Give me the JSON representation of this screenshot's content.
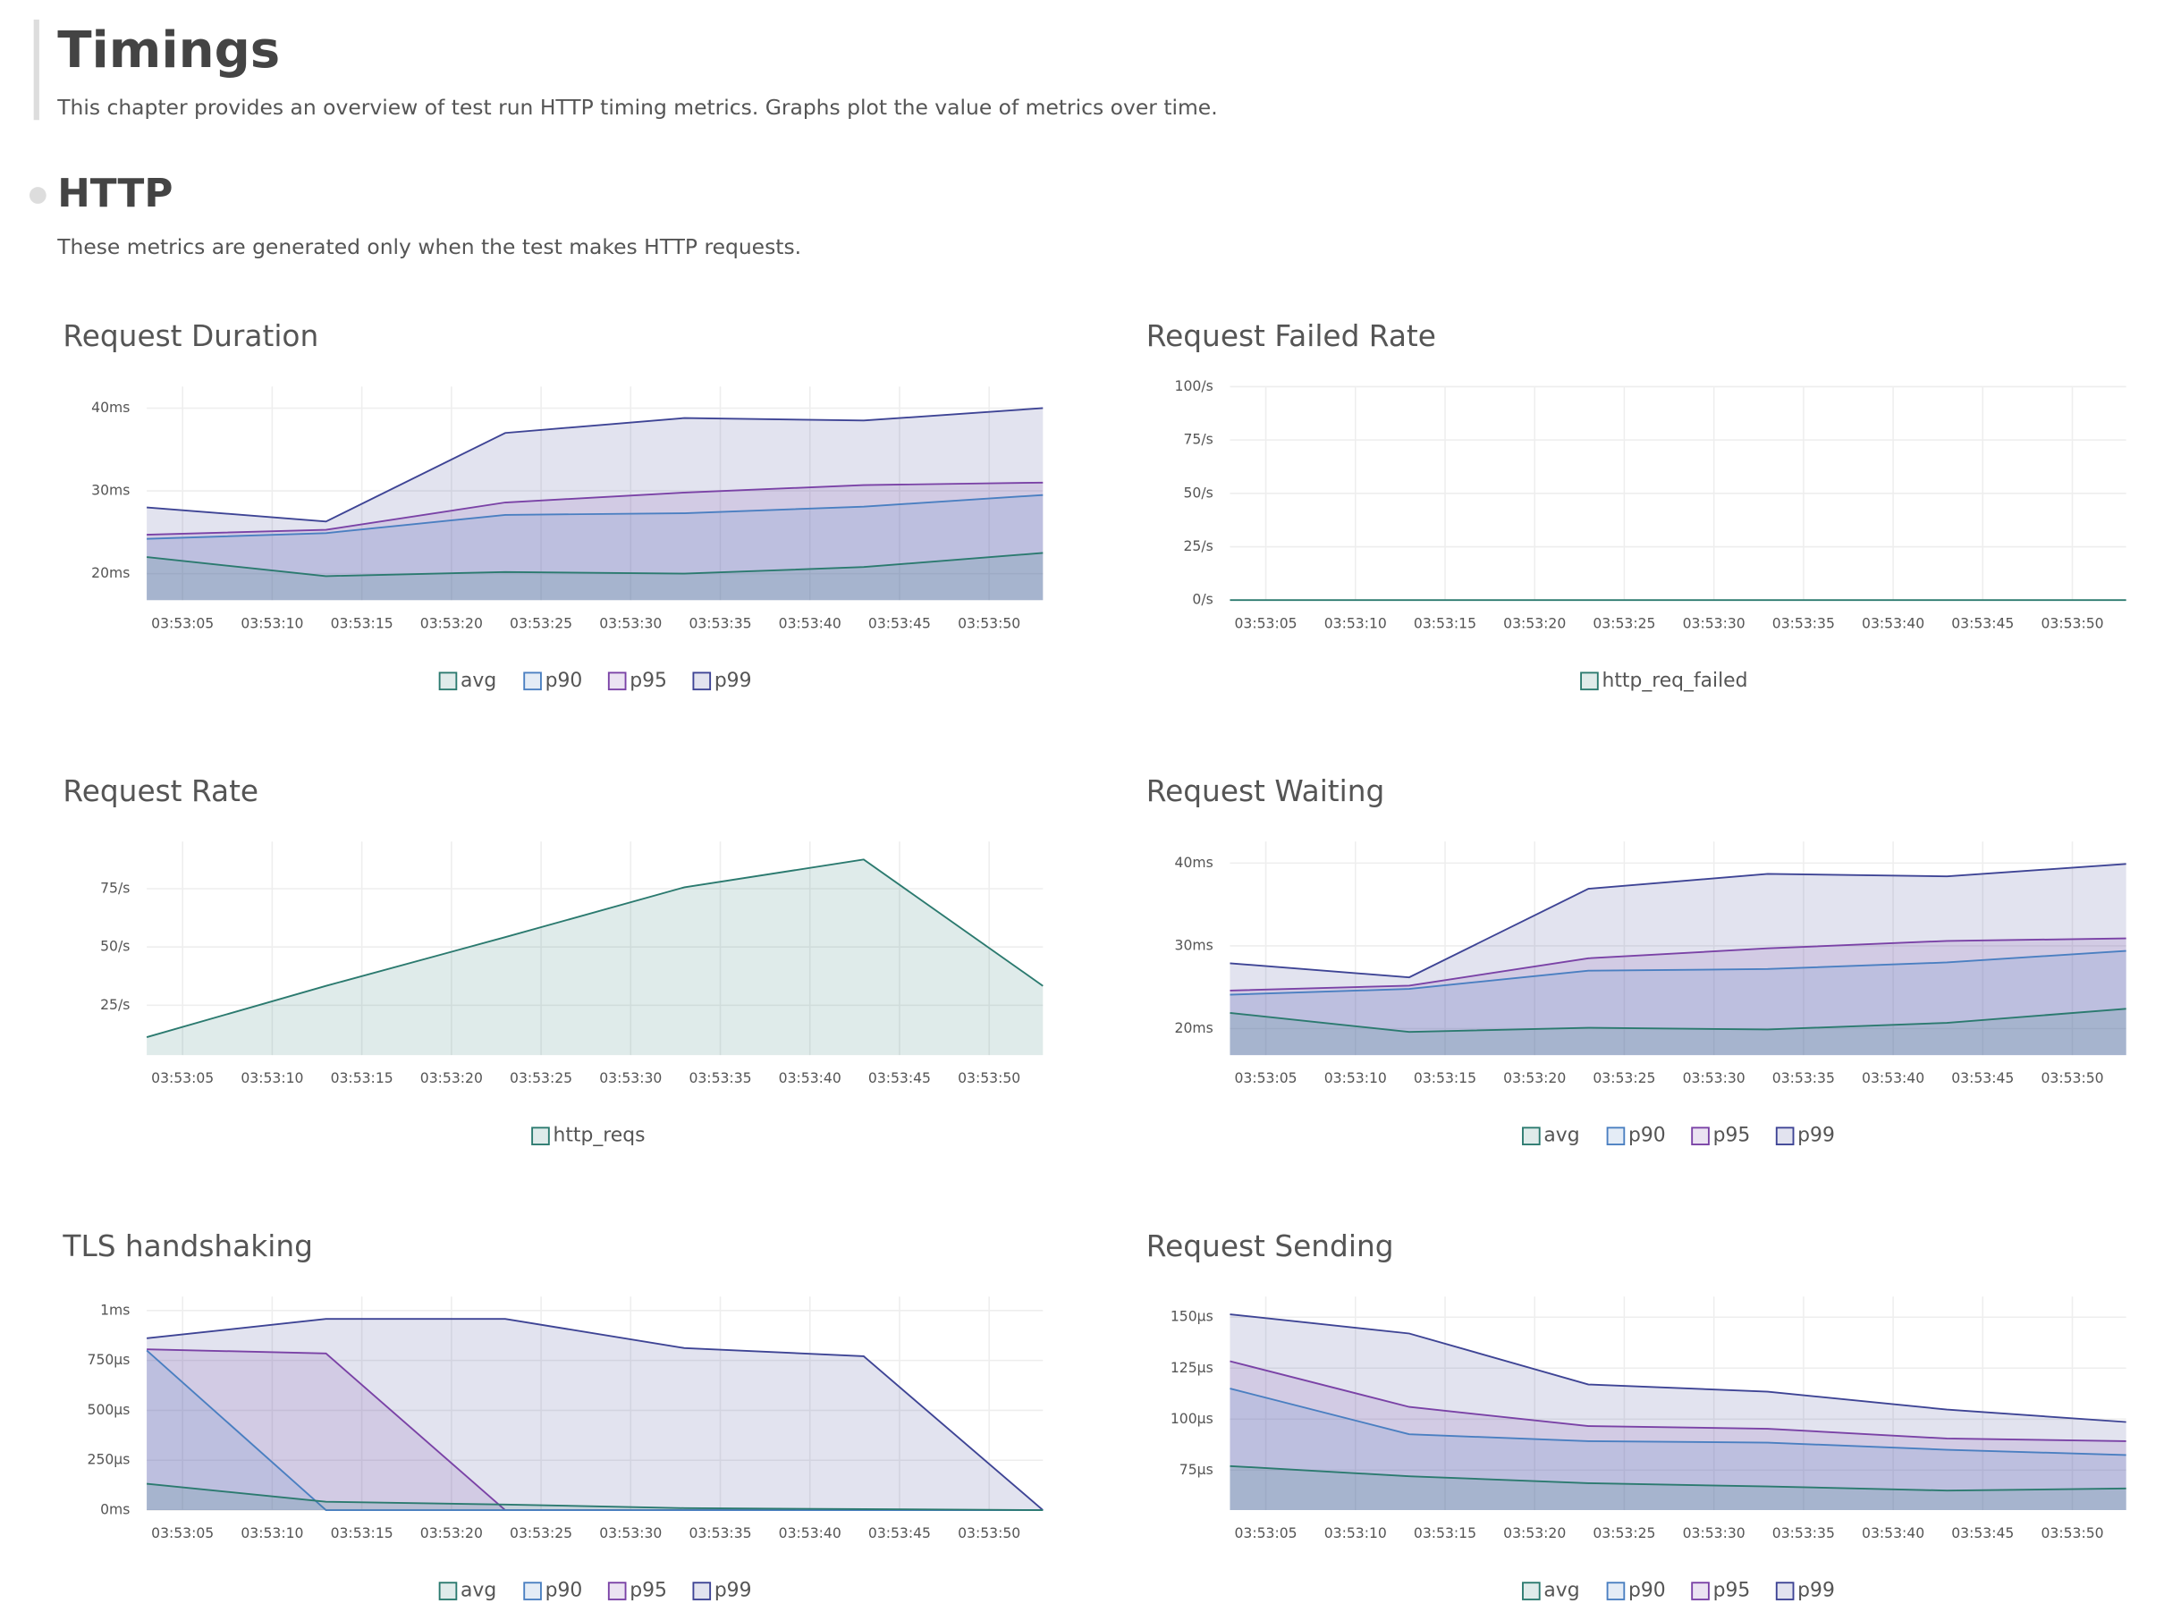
{
  "header": {
    "title": "Timings",
    "description": "This chapter provides an overview of test run HTTP timing metrics. Graphs plot the value of metrics over time."
  },
  "section": {
    "title": "HTTP",
    "description": "These metrics are generated only when the test makes HTTP requests."
  },
  "chart_data": [
    {
      "type": "area",
      "title": "Request Duration",
      "x": [
        "03:53:03",
        "03:53:13",
        "03:53:23",
        "03:53:33",
        "03:53:43",
        "03:53:53"
      ],
      "xlim": [
        "03:53:03",
        "03:53:53"
      ],
      "xticks": [
        "03:53:05",
        "03:53:10",
        "03:53:15",
        "03:53:20",
        "03:53:25",
        "03:53:30",
        "03:53:35",
        "03:53:40",
        "03:53:45",
        "03:53:50"
      ],
      "ylim": [
        16.8,
        42.6
      ],
      "yticks": [
        {
          "value": 20,
          "label": "20ms"
        },
        {
          "value": 30,
          "label": "30ms"
        },
        {
          "value": 40,
          "label": "40ms"
        }
      ],
      "grid": true,
      "series": [
        {
          "name": "avg",
          "color": "#2b7a6f",
          "values": [
            22.0,
            19.7,
            20.2,
            20.0,
            20.8,
            22.5
          ]
        },
        {
          "name": "p90",
          "color": "#4a7fc1",
          "values": [
            24.2,
            24.9,
            27.1,
            27.3,
            28.1,
            29.5
          ]
        },
        {
          "name": "p95",
          "color": "#7a42a6",
          "values": [
            24.7,
            25.3,
            28.6,
            29.8,
            30.7,
            31.0
          ]
        },
        {
          "name": "p99",
          "color": "#3e4495",
          "values": [
            28.0,
            26.3,
            37.0,
            38.8,
            38.5,
            40.0
          ]
        }
      ]
    },
    {
      "type": "area",
      "title": "Request Failed Rate",
      "x": [
        "03:53:03",
        "03:53:13",
        "03:53:23",
        "03:53:33",
        "03:53:43",
        "03:53:53"
      ],
      "xlim": [
        "03:53:03",
        "03:53:53"
      ],
      "xticks": [
        "03:53:05",
        "03:53:10",
        "03:53:15",
        "03:53:20",
        "03:53:25",
        "03:53:30",
        "03:53:35",
        "03:53:40",
        "03:53:45",
        "03:53:50"
      ],
      "ylim": [
        0,
        100
      ],
      "yticks": [
        {
          "value": 0,
          "label": "0/s"
        },
        {
          "value": 25,
          "label": "25/s"
        },
        {
          "value": 50,
          "label": "50/s"
        },
        {
          "value": 75,
          "label": "75/s"
        },
        {
          "value": 100,
          "label": "100/s"
        }
      ],
      "grid": true,
      "series": [
        {
          "name": "http_req_failed",
          "color": "#2b7a6f",
          "values": [
            0,
            0,
            0,
            0,
            0,
            0
          ]
        }
      ]
    },
    {
      "type": "area",
      "title": "Request Rate",
      "x": [
        "03:53:03",
        "03:53:13",
        "03:53:23",
        "03:53:33",
        "03:53:43",
        "03:53:53"
      ],
      "xlim": [
        "03:53:03",
        "03:53:53"
      ],
      "xticks": [
        "03:53:05",
        "03:53:10",
        "03:53:15",
        "03:53:20",
        "03:53:25",
        "03:53:30",
        "03:53:35",
        "03:53:40",
        "03:53:45",
        "03:53:50"
      ],
      "ylim": [
        3.6,
        95.2
      ],
      "yticks": [
        {
          "value": 25,
          "label": "25/s"
        },
        {
          "value": 50,
          "label": "50/s"
        },
        {
          "value": 75,
          "label": "75/s"
        }
      ],
      "grid": true,
      "series": [
        {
          "name": "http_reqs",
          "color": "#2b7a6f",
          "values": [
            11.3,
            33.3,
            54.2,
            75.6,
            87.5,
            33.3
          ]
        }
      ]
    },
    {
      "type": "area",
      "title": "Request Waiting",
      "x": [
        "03:53:03",
        "03:53:13",
        "03:53:23",
        "03:53:33",
        "03:53:43",
        "03:53:53"
      ],
      "xlim": [
        "03:53:03",
        "03:53:53"
      ],
      "xticks": [
        "03:53:05",
        "03:53:10",
        "03:53:15",
        "03:53:20",
        "03:53:25",
        "03:53:30",
        "03:53:35",
        "03:53:40",
        "03:53:45",
        "03:53:50"
      ],
      "ylim": [
        16.8,
        42.6
      ],
      "yticks": [
        {
          "value": 20,
          "label": "20ms"
        },
        {
          "value": 30,
          "label": "30ms"
        },
        {
          "value": 40,
          "label": "40ms"
        }
      ],
      "grid": true,
      "series": [
        {
          "name": "avg",
          "color": "#2b7a6f",
          "values": [
            21.9,
            19.6,
            20.1,
            19.9,
            20.7,
            22.4
          ]
        },
        {
          "name": "p90",
          "color": "#4a7fc1",
          "values": [
            24.1,
            24.8,
            27.0,
            27.2,
            28.0,
            29.4
          ]
        },
        {
          "name": "p95",
          "color": "#7a42a6",
          "values": [
            24.6,
            25.2,
            28.5,
            29.7,
            30.6,
            30.9
          ]
        },
        {
          "name": "p99",
          "color": "#3e4495",
          "values": [
            27.9,
            26.2,
            36.9,
            38.7,
            38.4,
            39.9
          ]
        }
      ]
    },
    {
      "type": "area",
      "title": "TLS handshaking",
      "x": [
        "03:53:03",
        "03:53:13",
        "03:53:23",
        "03:53:33",
        "03:53:43",
        "03:53:53"
      ],
      "xlim": [
        "03:53:03",
        "03:53:53"
      ],
      "xticks": [
        "03:53:05",
        "03:53:10",
        "03:53:15",
        "03:53:20",
        "03:53:25",
        "03:53:30",
        "03:53:35",
        "03:53:40",
        "03:53:45",
        "03:53:50"
      ],
      "ylim": [
        0,
        1070
      ],
      "yticks": [
        {
          "value": 0,
          "label": "0ms"
        },
        {
          "value": 250,
          "label": "250µs"
        },
        {
          "value": 500,
          "label": "500µs"
        },
        {
          "value": 750,
          "label": "750µs"
        },
        {
          "value": 1000,
          "label": "1ms"
        }
      ],
      "grid": true,
      "series": [
        {
          "name": "avg",
          "color": "#2b7a6f",
          "values": [
            132,
            42,
            28,
            10,
            5,
            0
          ]
        },
        {
          "name": "p90",
          "color": "#4a7fc1",
          "values": [
            800,
            0,
            0,
            0,
            0,
            0
          ]
        },
        {
          "name": "p95",
          "color": "#7a42a6",
          "values": [
            806,
            785,
            0,
            0,
            0,
            0
          ]
        },
        {
          "name": "p99",
          "color": "#3e4495",
          "values": [
            861,
            958,
            958,
            812,
            771,
            0
          ]
        }
      ]
    },
    {
      "type": "area",
      "title": "Request Sending",
      "x": [
        "03:53:03",
        "03:53:13",
        "03:53:23",
        "03:53:33",
        "03:53:43",
        "03:53:53"
      ],
      "xlim": [
        "03:53:03",
        "03:53:53"
      ],
      "xticks": [
        "03:53:05",
        "03:53:10",
        "03:53:15",
        "03:53:20",
        "03:53:25",
        "03:53:30",
        "03:53:35",
        "03:53:40",
        "03:53:45",
        "03:53:50"
      ],
      "ylim": [
        55.4,
        160.1
      ],
      "yticks": [
        {
          "value": 75,
          "label": "75µs"
        },
        {
          "value": 100,
          "label": "100µs"
        },
        {
          "value": 125,
          "label": "125µs"
        },
        {
          "value": 150,
          "label": "150µs"
        }
      ],
      "grid": true,
      "series": [
        {
          "name": "avg",
          "color": "#2b7a6f",
          "values": [
            77,
            72,
            68.6,
            67,
            65,
            66
          ]
        },
        {
          "name": "p90",
          "color": "#4a7fc1",
          "values": [
            115,
            92.6,
            89.2,
            88.5,
            85,
            82.4
          ]
        },
        {
          "name": "p95",
          "color": "#7a42a6",
          "values": [
            128.4,
            106,
            96.6,
            95.3,
            90.5,
            89.2
          ]
        },
        {
          "name": "p99",
          "color": "#3e4495",
          "values": [
            151.4,
            142,
            117,
            113.5,
            104.7,
            98.6
          ]
        }
      ]
    }
  ]
}
